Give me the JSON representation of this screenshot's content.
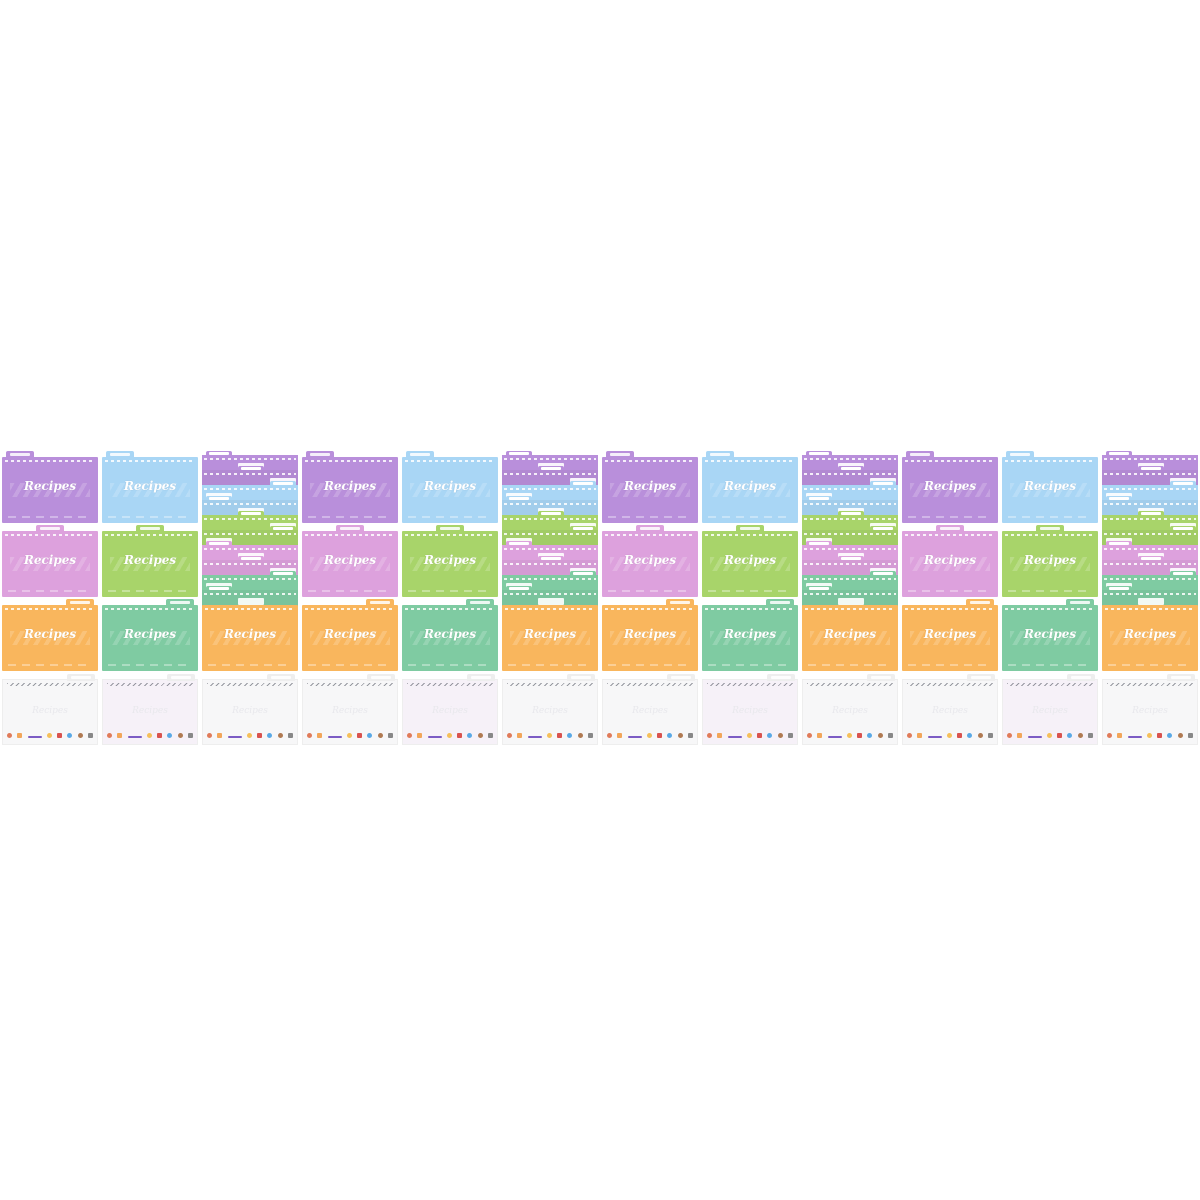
{
  "card_title": "Recipes",
  "faint_title": "Recipes",
  "colors": {
    "purple": "#b98fdb",
    "blue": "#a9d6f5",
    "pink": "#dda1dd",
    "lime": "#a8d46a",
    "orange": "#f9b65d",
    "green": "#7fcba2",
    "blank": "#f7f7f8",
    "blank_lavender": "#f6f1f8"
  },
  "group_pattern": [
    {
      "type": "cards",
      "rows": [
        "purple",
        "pink",
        "orange",
        "blank"
      ],
      "tabs": [
        "l",
        "m",
        "r",
        "r"
      ],
      "icon": "folder-icon"
    },
    {
      "type": "cards",
      "rows": [
        "blue",
        "lime",
        "green",
        "blank_lavender"
      ],
      "tabs": [
        "l",
        "m",
        "r",
        "r"
      ],
      "icon": "folder-icon"
    },
    {
      "type": "stack",
      "layers": [
        "purple",
        "purple",
        "blue",
        "blue",
        "lime",
        "lime",
        "pink",
        "pink",
        "green",
        "green"
      ],
      "base": "orange",
      "blank_row": "blank",
      "icon": "folder-stack-icon"
    }
  ],
  "group_count": 4,
  "icon_palette": [
    "#e07b5a",
    "#f2a65a",
    "#7c5cc4",
    "#f5c05a",
    "#d9534f",
    "#5aa9e6",
    "#b07a52",
    "#888888"
  ]
}
